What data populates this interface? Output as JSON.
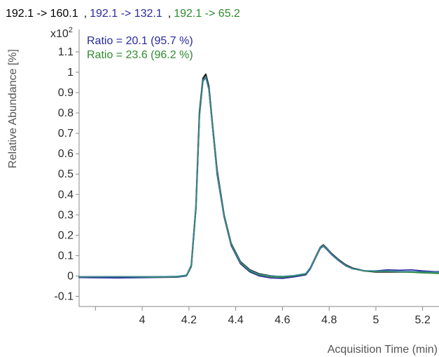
{
  "chart_data": {
    "type": "line",
    "title_segments": [
      {
        "text": "192.1 -> 160.1",
        "color": "#000000"
      },
      {
        "text": ",",
        "color": "#000000"
      },
      {
        "text": "192.1 -> 132.1",
        "color": "#2a2aa0"
      },
      {
        "text": ",",
        "color": "#000000"
      },
      {
        "text": "192.1 -> 65.2",
        "color": "#2e8b2e"
      }
    ],
    "annotations": [
      {
        "text": "Ratio = 20.1 (95.7 %)",
        "color": "#2a2aa0"
      },
      {
        "text": "Ratio = 23.6 (96.2 %)",
        "color": "#2e8b2e"
      }
    ],
    "xlabel": "Acquisition Time (min)",
    "ylabel": "Relative Abundance [%]",
    "y_multiplier": "x10",
    "y_multiplier_exp": "2",
    "xlim": [
      3.73,
      5.27
    ],
    "ylim": [
      -0.15,
      1.21
    ],
    "x_ticks": [
      3.8,
      4.0,
      4.2,
      4.4,
      4.6,
      4.8,
      5.0,
      5.2
    ],
    "x_tick_labels": [
      "",
      "4",
      "4.2",
      "4.4",
      "4.6",
      "4.8",
      "5",
      "5.2"
    ],
    "y_ticks": [
      -0.1,
      0,
      0.1,
      0.2,
      0.3,
      0.4,
      0.5,
      0.6,
      0.7,
      0.8,
      0.9,
      1.0,
      1.1
    ],
    "y_tick_labels": [
      "-0.1",
      "0",
      "0.1",
      "0.2",
      "0.3",
      "0.4",
      "0.5",
      "0.6",
      "0.7",
      "0.8",
      "0.9",
      "1",
      "1.1"
    ],
    "grid": false,
    "series": [
      {
        "color": "#1a1a1a",
        "x": [
          3.73,
          3.9,
          4.05,
          4.15,
          4.19,
          4.21,
          4.23,
          4.245,
          4.26,
          4.272,
          4.285,
          4.3,
          4.32,
          4.35,
          4.38,
          4.42,
          4.46,
          4.5,
          4.55,
          4.6,
          4.65,
          4.7,
          4.72,
          4.745,
          4.762,
          4.775,
          4.79,
          4.81,
          4.84,
          4.87,
          4.9,
          4.95,
          5.0,
          5.05,
          5.1,
          5.15,
          5.2,
          5.27
        ],
        "y": [
          -0.005,
          -0.005,
          -0.005,
          -0.003,
          0.003,
          0.05,
          0.34,
          0.8,
          0.97,
          0.99,
          0.93,
          0.75,
          0.52,
          0.3,
          0.16,
          0.07,
          0.03,
          0.01,
          0.0,
          -0.005,
          0.0,
          0.01,
          0.04,
          0.1,
          0.14,
          0.152,
          0.135,
          0.11,
          0.08,
          0.055,
          0.038,
          0.025,
          0.02,
          0.02,
          0.02,
          0.02,
          0.02,
          0.02
        ]
      },
      {
        "color": "#2a2aa0",
        "x": [
          3.73,
          3.9,
          4.05,
          4.15,
          4.19,
          4.21,
          4.23,
          4.245,
          4.26,
          4.272,
          4.285,
          4.3,
          4.32,
          4.35,
          4.38,
          4.42,
          4.46,
          4.5,
          4.55,
          4.6,
          4.65,
          4.7,
          4.72,
          4.745,
          4.762,
          4.775,
          4.79,
          4.81,
          4.84,
          4.87,
          4.9,
          4.95,
          5.0,
          5.05,
          5.1,
          5.15,
          5.2,
          5.27
        ],
        "y": [
          -0.008,
          -0.01,
          -0.008,
          -0.006,
          0.0,
          0.045,
          0.33,
          0.78,
          0.955,
          0.975,
          0.915,
          0.74,
          0.5,
          0.29,
          0.15,
          0.06,
          0.02,
          0.0,
          -0.01,
          -0.012,
          -0.005,
          0.005,
          0.035,
          0.095,
          0.135,
          0.146,
          0.13,
          0.105,
          0.075,
          0.05,
          0.035,
          0.025,
          0.025,
          0.03,
          0.028,
          0.03,
          0.025,
          0.02
        ]
      },
      {
        "color": "#2e8b2e",
        "x": [
          3.73,
          3.9,
          4.05,
          4.15,
          4.19,
          4.21,
          4.23,
          4.245,
          4.26,
          4.272,
          4.285,
          4.3,
          4.32,
          4.35,
          4.38,
          4.42,
          4.46,
          4.5,
          4.55,
          4.6,
          4.65,
          4.7,
          4.72,
          4.745,
          4.762,
          4.775,
          4.79,
          4.81,
          4.84,
          4.87,
          4.9,
          4.95,
          5.0,
          5.05,
          5.1,
          5.15,
          5.2,
          5.27
        ],
        "y": [
          -0.005,
          -0.004,
          -0.006,
          -0.004,
          0.002,
          0.048,
          0.335,
          0.785,
          0.96,
          0.98,
          0.92,
          0.745,
          0.51,
          0.295,
          0.155,
          0.065,
          0.025,
          0.005,
          -0.004,
          -0.006,
          0.0,
          0.01,
          0.038,
          0.098,
          0.138,
          0.148,
          0.133,
          0.108,
          0.078,
          0.052,
          0.036,
          0.024,
          0.022,
          0.022,
          0.02,
          0.018,
          0.015,
          0.012
        ]
      },
      {
        "color": "#3a8a9a",
        "x": [
          3.73,
          3.9,
          4.05,
          4.15,
          4.19,
          4.21,
          4.23,
          4.245,
          4.26,
          4.272,
          4.285,
          4.3,
          4.32,
          4.35,
          4.38,
          4.42,
          4.46,
          4.5,
          4.55,
          4.6,
          4.65,
          4.7,
          4.72,
          4.745,
          4.762,
          4.775,
          4.79,
          4.81,
          4.84,
          4.87,
          4.9,
          4.95,
          5.0,
          5.05,
          5.1,
          5.15,
          5.2,
          5.27
        ],
        "y": [
          -0.004,
          -0.004,
          -0.004,
          -0.002,
          0.004,
          0.055,
          0.345,
          0.79,
          0.962,
          0.978,
          0.918,
          0.748,
          0.515,
          0.3,
          0.158,
          0.068,
          0.028,
          0.008,
          0.0,
          -0.002,
          0.002,
          0.012,
          0.04,
          0.1,
          0.14,
          0.15,
          0.134,
          0.108,
          0.078,
          0.053,
          0.036,
          0.026,
          0.024,
          0.024,
          0.022,
          0.022,
          0.02,
          0.018
        ]
      }
    ]
  }
}
